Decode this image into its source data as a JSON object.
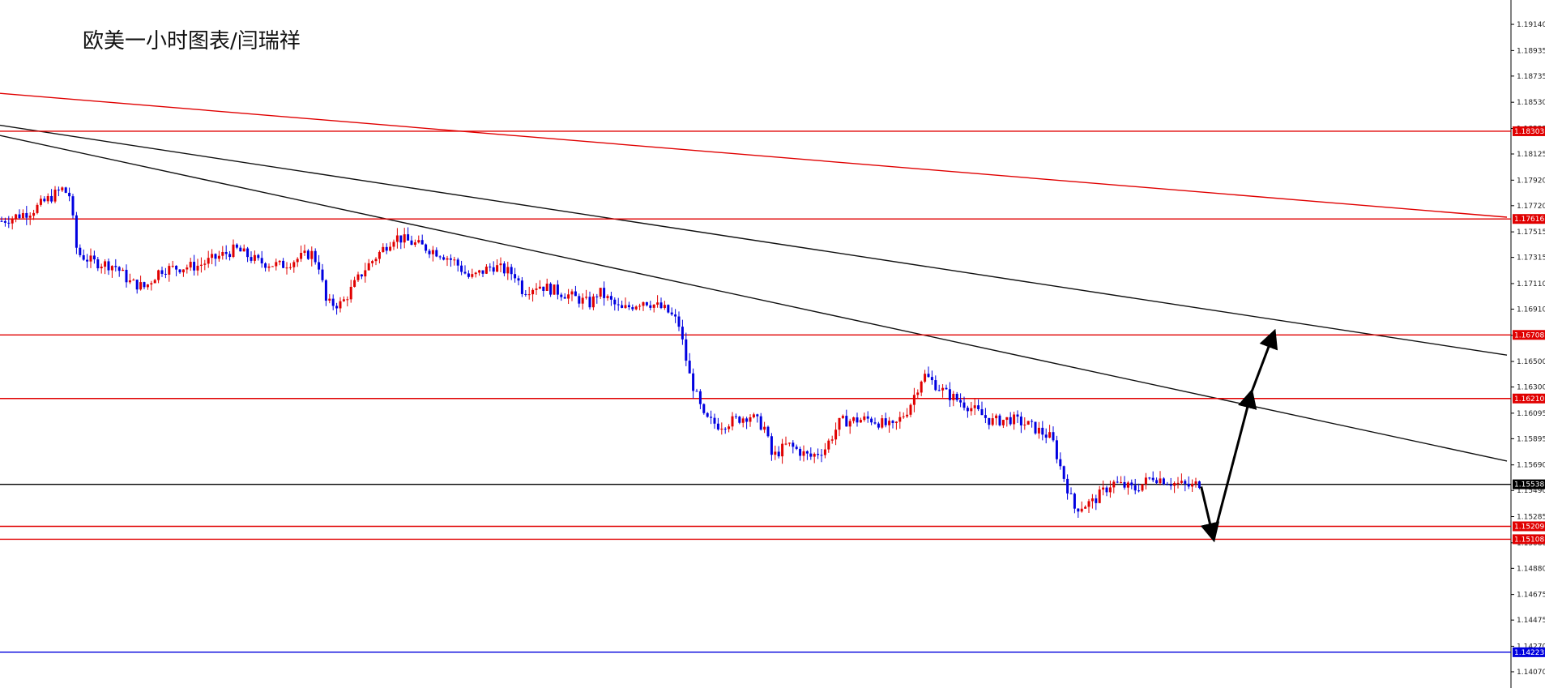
{
  "chart_data": {
    "type": "candlestick",
    "title": "欧美一小时图表/闫瑞祥",
    "ylim": [
      1.14,
      1.1928
    ],
    "y_ticks": [
      "1.19140",
      "1.18935",
      "1.18735",
      "1.18530",
      "1.18325",
      "1.18125",
      "1.17920",
      "1.17720",
      "1.17515",
      "1.17315",
      "1.17110",
      "1.16910",
      "1.16705",
      "1.16500",
      "1.16300",
      "1.16095",
      "1.15895",
      "1.15690",
      "1.15490",
      "1.15285",
      "1.15080",
      "1.14880",
      "1.14675",
      "1.14475",
      "1.14270",
      "1.14070"
    ],
    "price_levels": [
      {
        "label": "1.18303",
        "value": 1.18303,
        "color": "#e00000"
      },
      {
        "label": "1.17616",
        "value": 1.17616,
        "color": "#e00000"
      },
      {
        "label": "1.16708",
        "value": 1.16708,
        "color": "#e00000"
      },
      {
        "label": "1.16210",
        "value": 1.1621,
        "color": "#e00000"
      },
      {
        "label": "1.15209",
        "value": 1.15209,
        "color": "#e00000"
      },
      {
        "label": "1.15108",
        "value": 1.15108,
        "color": "#e00000"
      },
      {
        "label": "1.14223",
        "value": 1.14223,
        "color": "#0000dd"
      }
    ],
    "current_price": {
      "label": "1.15538",
      "value": 1.15538,
      "color": "#000000"
    },
    "trend_lines": [
      {
        "color": "#e00000",
        "from": [
          0,
          1.186
        ],
        "to": [
          1.0,
          1.1763
        ]
      },
      {
        "color": "#111111",
        "from": [
          0,
          1.1835
        ],
        "to": [
          1.0,
          1.1655
        ]
      },
      {
        "color": "#111111",
        "from": [
          0,
          1.1827
        ],
        "to": [
          1.0,
          1.1572
        ]
      }
    ],
    "close_path": [
      [
        0.0,
        1.176
      ],
      [
        0.02,
        1.1768
      ],
      [
        0.04,
        1.1785
      ],
      [
        0.045,
        1.178
      ],
      [
        0.05,
        1.1735
      ],
      [
        0.06,
        1.1728
      ],
      [
        0.075,
        1.1725
      ],
      [
        0.085,
        1.1712
      ],
      [
        0.095,
        1.1708
      ],
      [
        0.105,
        1.1722
      ],
      [
        0.13,
        1.1725
      ],
      [
        0.155,
        1.1738
      ],
      [
        0.17,
        1.1728
      ],
      [
        0.185,
        1.1725
      ],
      [
        0.205,
        1.1735
      ],
      [
        0.21,
        1.1725
      ],
      [
        0.215,
        1.1695
      ],
      [
        0.225,
        1.1695
      ],
      [
        0.24,
        1.1722
      ],
      [
        0.26,
        1.1748
      ],
      [
        0.29,
        1.1735
      ],
      [
        0.3,
        1.1728
      ],
      [
        0.31,
        1.1715
      ],
      [
        0.325,
        1.1725
      ],
      [
        0.34,
        1.1718
      ],
      [
        0.345,
        1.1705
      ],
      [
        0.355,
        1.171
      ],
      [
        0.375,
        1.1702
      ],
      [
        0.39,
        1.1695
      ],
      [
        0.395,
        1.1705
      ],
      [
        0.41,
        1.169
      ],
      [
        0.425,
        1.1698
      ],
      [
        0.44,
        1.169
      ],
      [
        0.448,
        1.168
      ],
      [
        0.455,
        1.164
      ],
      [
        0.465,
        1.1605
      ],
      [
        0.475,
        1.16
      ],
      [
        0.495,
        1.1608
      ],
      [
        0.505,
        1.1598
      ],
      [
        0.51,
        1.1575
      ],
      [
        0.52,
        1.1585
      ],
      [
        0.535,
        1.1575
      ],
      [
        0.545,
        1.1582
      ],
      [
        0.555,
        1.1603
      ],
      [
        0.575,
        1.1605
      ],
      [
        0.59,
        1.1598
      ],
      [
        0.6,
        1.1613
      ],
      [
        0.61,
        1.164
      ],
      [
        0.625,
        1.1625
      ],
      [
        0.64,
        1.1615
      ],
      [
        0.655,
        1.1603
      ],
      [
        0.668,
        1.1605
      ],
      [
        0.68,
        1.16
      ],
      [
        0.695,
        1.159
      ],
      [
        0.7,
        1.157
      ],
      [
        0.71,
        1.1535
      ],
      [
        0.722,
        1.154
      ],
      [
        0.735,
        1.1555
      ],
      [
        0.75,
        1.155
      ],
      [
        0.762,
        1.156
      ],
      [
        0.775,
        1.1555
      ],
      [
        0.787,
        1.1552
      ],
      [
        0.795,
        1.1556
      ]
    ],
    "forecast_arrows": [
      {
        "from": [
          0.795,
          1.1552
        ],
        "to": [
          0.803,
          1.1512
        ]
      },
      {
        "from": [
          0.803,
          1.1512
        ],
        "to": [
          0.828,
          1.1625
        ]
      },
      {
        "from": [
          0.828,
          1.1625
        ],
        "to": [
          0.843,
          1.1672
        ]
      }
    ]
  }
}
